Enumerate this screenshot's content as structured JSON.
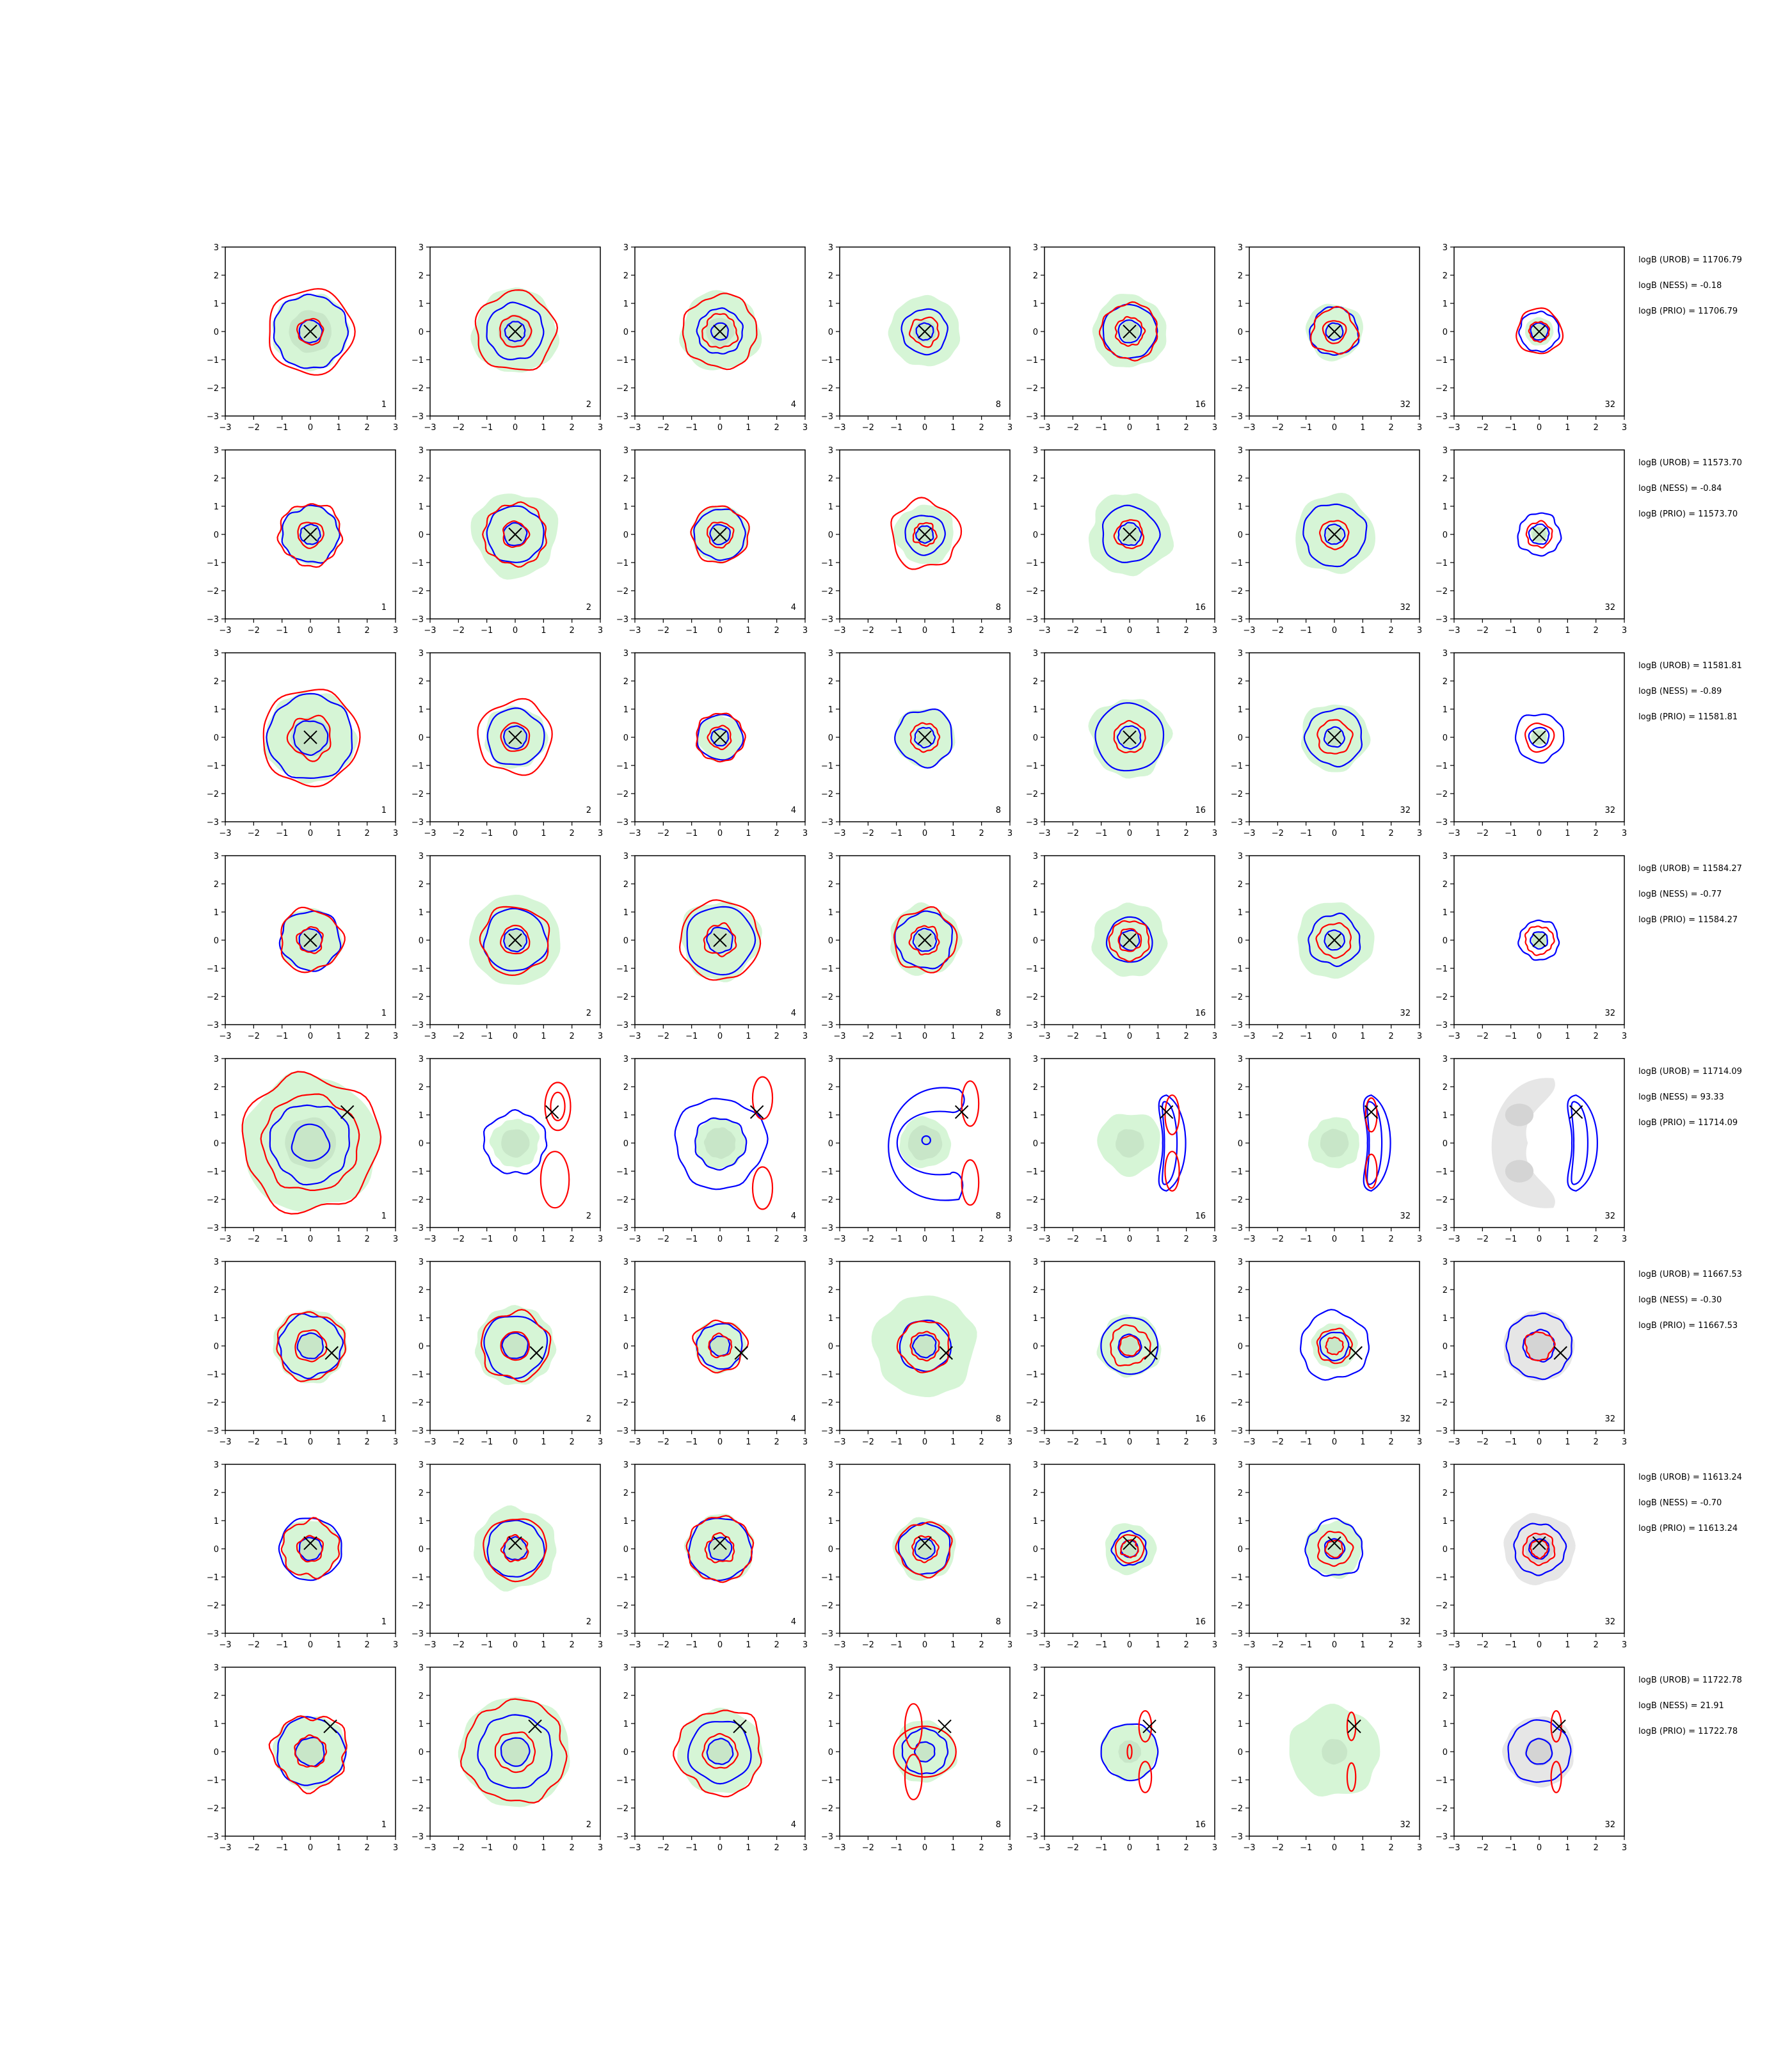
{
  "figure": {
    "ncols": 7,
    "nrows": 8,
    "panel_labels": [
      "1",
      "2",
      "4",
      "8",
      "16",
      "32",
      "32"
    ],
    "colors": {
      "outer_contour": "#0000ff",
      "inner_contour": "#ff0000",
      "fill_light": "#d6f5d6",
      "fill_dark": "#c8e6c8",
      "grey_fill": "#e6e6e6",
      "grey_dark": "#d4d4d4",
      "marker": "#000000"
    }
  },
  "chart_data": {
    "type": "contour-grid",
    "axes": {
      "xlim": [
        -3,
        3
      ],
      "ylim": [
        -3,
        3
      ],
      "xticks": [
        -3,
        -2,
        -1,
        0,
        1,
        2,
        3
      ],
      "yticks": [
        -3,
        -2,
        -1,
        0,
        1,
        2,
        3
      ],
      "grid": false
    },
    "rows": [
      {
        "marker": [
          0,
          0
        ],
        "stats": [
          "logB (UROB) = 11706.79",
          "logB (NESS) = -0.18",
          "logB (PRIO) = 11706.79"
        ],
        "panels": [
          {
            "blue": [
              1.3,
              0.4
            ],
            "red": [
              1.5,
              0.45
            ],
            "green": 1.35,
            "greenDark": 0.75
          },
          {
            "blue": [
              1.0,
              0.35
            ],
            "red": [
              1.4,
              0.55
            ],
            "green": 1.5,
            "greenDark": 0.6
          },
          {
            "blue": [
              0.8,
              0.3
            ],
            "red": [
              1.3,
              0.6
            ],
            "green": 1.4,
            "greenDark": 0.5
          },
          {
            "blue": [
              0.8,
              0.3
            ],
            "red": [
              0.5
            ],
            "green": 1.25,
            "greenDark": 0.4
          },
          {
            "blue": [
              0.95,
              0.4
            ],
            "red": [
              1.0,
              0.5
            ],
            "green": 1.3,
            "greenDark": 0.35
          },
          {
            "blue": [
              0.85,
              0.3
            ],
            "red": [
              0.8,
              0.4
            ],
            "green": 1.0,
            "greenDark": 0.3
          },
          {
            "blue": [
              0.7,
              0.3
            ],
            "red": [
              0.8,
              0.35
            ],
            "green": 0.5,
            "greenDark": 0.25
          }
        ]
      },
      {
        "marker": [
          0,
          0
        ],
        "stats": [
          "logB (UROB) = 11573.70",
          "logB (NESS) = -0.84",
          "logB (PRIO) = 11573.70"
        ],
        "panels": [
          {
            "blue": [
              1.0,
              0.35
            ],
            "red": [
              1.1,
              0.45
            ],
            "green": 1.05,
            "greenDark": 0.35
          },
          {
            "blue": [
              1.0,
              0.4
            ],
            "red": [
              1.1,
              0.45
            ],
            "green": 1.5,
            "greenDark": 0.4
          },
          {
            "blue": [
              0.9,
              0.35
            ],
            "red": [
              1.0,
              0.45
            ],
            "green": 1.0,
            "greenDark": 0.35
          },
          {
            "blue": [
              0.7,
              0.3
            ],
            "red": [
              1.2,
              0.4
            ],
            "green": 1.05,
            "greenDark": 0.3
          },
          {
            "blue": [
              1.0,
              0.4
            ],
            "red": [
              0.5
            ],
            "green": 1.45,
            "greenDark": 0.35
          },
          {
            "blue": [
              1.1,
              0.35
            ],
            "red": [
              0.5
            ],
            "green": 1.4,
            "greenDark": 0.3
          },
          {
            "blue": [
              0.75,
              0.35
            ],
            "red": [
              0.45
            ],
            "green": 0.3,
            "greenDark": 0.25
          }
        ]
      },
      {
        "marker": [
          0,
          0
        ],
        "stats": [
          "logB (UROB) = 11581.81",
          "logB (NESS) = -0.89",
          "logB (PRIO) = 11581.81"
        ],
        "panels": [
          {
            "blue": [
              1.5,
              0.6
            ],
            "red": [
              1.7,
              0.75
            ],
            "green": 1.6,
            "greenDark": 0.7
          },
          {
            "blue": [
              1.0,
              0.4
            ],
            "red": [
              1.3,
              0.5
            ],
            "green": 1.1,
            "greenDark": 0.45
          },
          {
            "blue": [
              0.8,
              0.3
            ],
            "red": [
              0.85,
              0.4
            ],
            "green": 0.8,
            "greenDark": 0.35
          },
          {
            "blue": [
              1.0,
              0.35
            ],
            "red": [
              0.5
            ],
            "green": 1.05,
            "greenDark": 0.3
          },
          {
            "blue": [
              1.2,
              0.4
            ],
            "red": [
              0.55
            ],
            "green": 1.4,
            "greenDark": 0.35
          },
          {
            "blue": [
              1.0,
              0.35
            ],
            "red": [
              0.6
            ],
            "green": 1.2,
            "greenDark": 0.3
          },
          {
            "blue": [
              0.85,
              0.35
            ],
            "red": [
              0.5
            ],
            "green": 0.3,
            "greenDark": 0.25
          }
        ]
      },
      {
        "marker": [
          0,
          0
        ],
        "stats": [
          "logB (UROB) = 11584.27",
          "logB (NESS) = -0.77",
          "logB (PRIO) = 11584.27"
        ],
        "panels": [
          {
            "blue": [
              1.05,
              0.4
            ],
            "red": [
              1.1,
              0.45
            ],
            "green": 1.1,
            "greenDark": 0.4
          },
          {
            "blue": [
              1.1,
              0.4
            ],
            "red": [
              1.2,
              0.5
            ],
            "green": 1.6,
            "greenDark": 0.4
          },
          {
            "blue": [
              1.2,
              0.45
            ],
            "red": [
              1.4,
              0.55
            ],
            "green": 1.4,
            "greenDark": 0.45
          },
          {
            "blue": [
              1.0,
              0.4
            ],
            "red": [
              1.1,
              0.5
            ],
            "green": 1.25,
            "greenDark": 0.35
          },
          {
            "blue": [
              0.8,
              0.35
            ],
            "red": [
              0.7,
              0.4
            ],
            "green": 1.3,
            "greenDark": 0.3
          },
          {
            "blue": [
              0.9,
              0.35
            ],
            "red": [
              0.6
            ],
            "green": 1.35,
            "greenDark": 0.3
          },
          {
            "blue": [
              0.7,
              0.3
            ],
            "red": [
              0.5
            ],
            "green": 0.3,
            "greenDark": 0.25
          }
        ]
      },
      {
        "marker": [
          1.3,
          1.1
        ],
        "stats": [
          "logB (UROB) = 11714.09",
          "logB (NESS) = 93.33",
          "logB (PRIO) = 11714.09"
        ],
        "panels": [
          {
            "blue": [
              1.4,
              0.65
            ],
            "red": [
              2.4,
              1.7
            ],
            "green": 2.4,
            "greenDark": 0.9
          },
          {
            "blue": [
              1.1
            ],
            "red": [],
            "green": 0.85,
            "greenDark": 0.5,
            "redLobes": [
              [
                1.5,
                1.3,
                0.45,
                0.85
              ],
              [
                1.5,
                1.3,
                0.25,
                0.5
              ],
              [
                1.4,
                -1.3,
                0.5,
                1.0
              ]
            ]
          },
          {
            "blue": [
              1.6,
              0.9
            ],
            "red": [],
            "green": 0.9,
            "greenDark": 0.55,
            "redLobes": [
              [
                1.5,
                1.6,
                0.35,
                0.75
              ],
              [
                1.5,
                -1.6,
                0.35,
                0.75
              ]
            ]
          },
          {
            "blue": [],
            "red": [],
            "green": 0.9,
            "greenDark": 0.6,
            "blueShapes": "horseshoe",
            "redLobes": [
              [
                1.6,
                1.4,
                0.3,
                0.8
              ],
              [
                1.6,
                -1.4,
                0.3,
                0.8
              ]
            ]
          },
          {
            "blue": [],
            "red": [],
            "green": 1.1,
            "greenDark": 0.5,
            "blueShapes": "crescent",
            "redLobes": [
              [
                1.5,
                1.0,
                0.25,
                0.7
              ],
              [
                1.5,
                -1.0,
                0.25,
                0.7
              ]
            ]
          },
          {
            "blue": [],
            "red": [],
            "green": 0.9,
            "greenDark": 0.5,
            "blueShapes": "crescent",
            "redLobes": [
              [
                1.3,
                1.0,
                0.2,
                0.6
              ],
              [
                1.3,
                -1.0,
                0.2,
                0.6
              ]
            ]
          },
          {
            "blue": [],
            "red": [],
            "green": 0,
            "greenDark": 0,
            "blueShapes": "crescent-wide",
            "grey": true,
            "redLobes": []
          }
        ]
      },
      {
        "marker": [
          0.75,
          -0.25
        ],
        "stats": [
          "logB (UROB) = 11667.53",
          "logB (NESS) = -0.30",
          "logB (PRIO) = 11667.53"
        ],
        "panels": [
          {
            "blue": [
              1.1,
              0.45
            ],
            "red": [
              1.2,
              0.55
            ],
            "green": 1.3,
            "greenDark": 0.45
          },
          {
            "blue": [
              1.1,
              0.45
            ],
            "red": [
              1.2,
              0.5
            ],
            "green": 1.4,
            "greenDark": 0.45
          },
          {
            "blue": [
              0.8,
              0.35
            ],
            "red": [
              0.9,
              0.4
            ],
            "green": 0.9,
            "greenDark": 0.35
          },
          {
            "blue": [
              0.9,
              0.4
            ],
            "red": [
              0.9,
              0.5
            ],
            "green": 1.8,
            "greenDark": 0.5
          },
          {
            "blue": [
              1.0,
              0.4
            ],
            "red": [
              0.7,
              0.35
            ],
            "green": 1.1,
            "greenDark": 0.3
          },
          {
            "blue": [
              1.2,
              0.5
            ],
            "red": [
              0.6,
              0.3
            ],
            "green": 0.8,
            "greenDark": 0.3
          },
          {
            "blue": [
              1.15,
              0.55
            ],
            "red": [
              0.5
            ],
            "green": 0,
            "greenDark": 0,
            "grey": true
          }
        ]
      },
      {
        "marker": [
          0,
          0.2
        ],
        "stats": [
          "logB (UROB) = 11613.24",
          "logB (NESS) = -0.70",
          "logB (PRIO) = 11613.24"
        ],
        "panels": [
          {
            "blue": [
              1.1,
              0.4
            ],
            "red": [
              1.0,
              0.45
            ],
            "green": 1.05,
            "greenDark": 0.4
          },
          {
            "blue": [
              1.0,
              0.4
            ],
            "red": [
              1.1,
              0.45
            ],
            "green": 1.45,
            "greenDark": 0.4
          },
          {
            "blue": [
              1.1,
              0.4
            ],
            "red": [
              1.15,
              0.5
            ],
            "green": 1.2,
            "greenDark": 0.4
          },
          {
            "blue": [
              0.9,
              0.35
            ],
            "red": [
              0.95,
              0.45
            ],
            "green": 1.1,
            "greenDark": 0.35
          },
          {
            "blue": [
              0.6,
              0.3
            ],
            "red": [
              0.5,
              0.3
            ],
            "green": 0.9,
            "greenDark": 0.3
          },
          {
            "blue": [
              1.0,
              0.35
            ],
            "red": [
              0.6,
              0.3
            ],
            "green": 1.0,
            "greenDark": 0.3
          },
          {
            "blue": [
              0.9,
              0.35
            ],
            "red": [
              0.55,
              0.3
            ],
            "green": 0,
            "greenDark": 0,
            "grey": true
          }
        ]
      },
      {
        "marker": [
          0.7,
          0.9
        ],
        "stats": [
          "logB (UROB) = 11722.78",
          "logB (NESS) = 21.91",
          "logB (PRIO) = 11722.78"
        ],
        "panels": [
          {
            "blue": [
              1.2,
              0.5
            ],
            "red": [
              1.3,
              0.55
            ],
            "green": 1.3,
            "greenDark": 0.5
          },
          {
            "blue": [
              1.3,
              0.5
            ],
            "red": [
              1.8,
              0.7
            ],
            "green": 1.95,
            "greenDark": 0.5
          },
          {
            "blue": [
              1.1,
              0.45
            ],
            "red": [
              1.5,
              0.6
            ],
            "green": 1.5,
            "greenDark": 0.45
          },
          {
            "blue": [
              0.8,
              0.35
            ],
            "red": [],
            "green": 1.1,
            "greenDark": 0.35,
            "redLobes": [
              [
                -0.4,
                0.9,
                0.3,
                0.8
              ],
              [
                -0.4,
                -0.9,
                0.3,
                0.8
              ],
              [
                0,
                0,
                1.1,
                0.9
              ]
            ]
          },
          {
            "blue": [
              1.0
            ],
            "red": [],
            "green": 1.0,
            "greenDark": 0.4,
            "redLobes": [
              [
                0.55,
                0.9,
                0.22,
                0.55
              ],
              [
                0.55,
                -0.9,
                0.22,
                0.55
              ],
              [
                0,
                0,
                0.08,
                0.25
              ]
            ]
          },
          {
            "blue": [],
            "red": [],
            "green": 1.6,
            "greenDark": 0.45,
            "redLobes": [
              [
                0.6,
                0.9,
                0.15,
                0.5
              ],
              [
                0.6,
                -0.9,
                0.15,
                0.5
              ]
            ]
          },
          {
            "blue": [
              1.1,
              0.45
            ],
            "red": [],
            "green": 0,
            "greenDark": 0,
            "grey": true,
            "redLobes": [
              [
                0.6,
                0.9,
                0.18,
                0.55
              ],
              [
                0.6,
                -0.9,
                0.18,
                0.55
              ]
            ]
          }
        ]
      }
    ]
  }
}
